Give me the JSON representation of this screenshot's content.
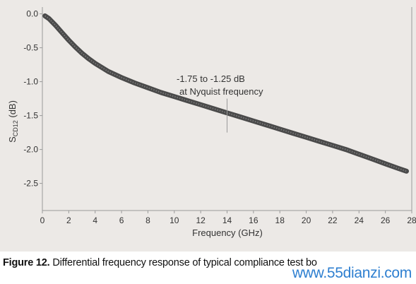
{
  "chart_data": {
    "type": "line",
    "title": "",
    "xlabel": "Frequency (GHz)",
    "ylabel_main": "S",
    "ylabel_sub": "CD12",
    "ylabel_unit": " (dB)",
    "xlim": [
      0,
      28
    ],
    "ylim": [
      -2.9,
      0.1
    ],
    "x_ticks": [
      0,
      2,
      4,
      6,
      8,
      10,
      12,
      14,
      16,
      18,
      20,
      22,
      24,
      26,
      28
    ],
    "y_ticks": [
      0.0,
      -0.5,
      -1.0,
      -1.5,
      -2.0,
      -2.5
    ],
    "y_tick_labels": [
      "0.0",
      "-0.5",
      "-1.0",
      "-1.5",
      "-2.0",
      "-2.5"
    ],
    "grid": false,
    "series": [
      {
        "x": [
          0.2,
          0.5,
          1,
          1.5,
          2,
          2.5,
          3,
          3.5,
          4,
          5,
          6,
          7,
          8,
          9,
          10,
          11,
          12,
          13,
          14,
          15,
          16,
          17,
          18,
          19,
          20,
          21,
          22,
          23,
          24,
          25,
          26,
          27,
          27.6
        ],
        "y": [
          -0.03,
          -0.07,
          -0.17,
          -0.28,
          -0.39,
          -0.49,
          -0.58,
          -0.66,
          -0.73,
          -0.85,
          -0.94,
          -1.02,
          -1.09,
          -1.16,
          -1.22,
          -1.28,
          -1.34,
          -1.4,
          -1.46,
          -1.52,
          -1.58,
          -1.64,
          -1.7,
          -1.76,
          -1.82,
          -1.88,
          -1.94,
          -2.0,
          -2.07,
          -2.14,
          -2.21,
          -2.28,
          -2.32
        ]
      }
    ],
    "annotation": {
      "line1": "-1.75 to -1.25 dB",
      "line2": "at Nyquist frequency",
      "x": 14,
      "y_range": [
        -1.25,
        -1.75
      ]
    }
  },
  "caption": {
    "label": "Figure 12.",
    "text": " Differential frequency response of typical compliance test bo"
  },
  "watermark": "www.55dianzi.com",
  "colors": {
    "background": "#ece9e6",
    "axis": "#9a9a9a",
    "curve": "#4a4a4a",
    "text": "#333333",
    "watermark": "#2e7fd0"
  }
}
